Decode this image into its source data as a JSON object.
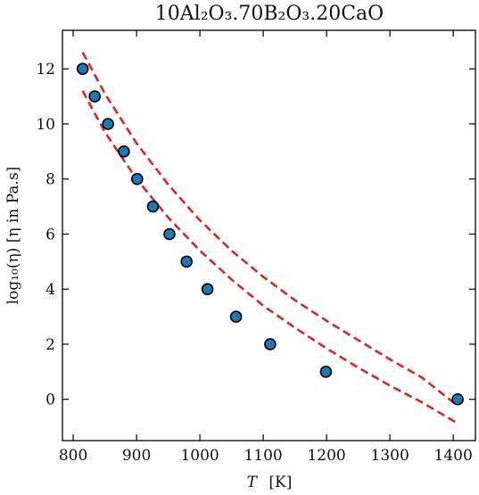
{
  "chart_data": {
    "type": "scatter",
    "title": "10Al₂O₃.70B₂O₃.20CaO",
    "xlabel_var": "T",
    "xlabel_unit": "[K]",
    "ylabel": "log₁₀(η)  [η in Pa.s]",
    "xlim": [
      783,
      1435
    ],
    "ylim": [
      -1.5,
      13.4
    ],
    "xticks": [
      800,
      900,
      1000,
      1100,
      1200,
      1300,
      1400
    ],
    "yticks": [
      0,
      2,
      4,
      6,
      8,
      10,
      12
    ],
    "xtick_labels": [
      "800",
      "900",
      "1000",
      "1100",
      "1200",
      "1300",
      "1400"
    ],
    "ytick_labels": [
      "0",
      "2",
      "4",
      "6",
      "8",
      "10",
      "12"
    ],
    "grid": false,
    "colors": {
      "points": "#1f77b4",
      "point_edge": "#000000",
      "fit": "#d62728",
      "axes": "#000000"
    },
    "points": [
      {
        "x": 815,
        "y": 12
      },
      {
        "x": 834,
        "y": 11
      },
      {
        "x": 855,
        "y": 10
      },
      {
        "x": 880,
        "y": 9
      },
      {
        "x": 901,
        "y": 8
      },
      {
        "x": 926,
        "y": 7
      },
      {
        "x": 952,
        "y": 6
      },
      {
        "x": 979,
        "y": 5
      },
      {
        "x": 1012,
        "y": 4
      },
      {
        "x": 1057,
        "y": 3
      },
      {
        "x": 1111,
        "y": 2
      },
      {
        "x": 1199,
        "y": 1
      },
      {
        "x": 1407,
        "y": 0
      }
    ],
    "series": [
      {
        "style": "dashed",
        "x": [
          815,
          850,
          900,
          950,
          1000,
          1050,
          1100,
          1150,
          1200,
          1250,
          1300,
          1350,
          1405
        ],
        "y": [
          12.6,
          11.1,
          9.3,
          7.8,
          6.5,
          5.4,
          4.45,
          3.6,
          2.85,
          2.15,
          1.45,
          0.8,
          -0.2
        ]
      },
      {
        "style": "dashed",
        "x": [
          815,
          850,
          900,
          950,
          1000,
          1050,
          1100,
          1150,
          1200,
          1250,
          1300,
          1350,
          1405
        ],
        "y": [
          11.2,
          9.7,
          8.0,
          6.6,
          5.4,
          4.35,
          3.4,
          2.6,
          1.85,
          1.15,
          0.5,
          -0.1,
          -0.85
        ]
      }
    ]
  }
}
